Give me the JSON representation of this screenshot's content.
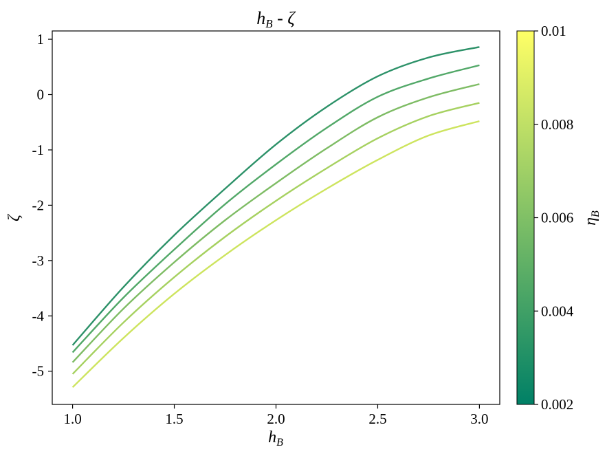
{
  "chart_data": {
    "type": "line",
    "title": "h_B - ζ",
    "xlabel": "h_B",
    "ylabel": "ζ",
    "xlim": [
      0.9,
      3.1
    ],
    "ylim": [
      -5.6,
      1.15
    ],
    "xticks": [
      1.0,
      1.5,
      2.0,
      2.5,
      3.0
    ],
    "xtick_labels": [
      "1.0",
      "1.5",
      "2.0",
      "2.5",
      "3.0"
    ],
    "yticks": [
      1,
      0,
      -1,
      -2,
      -3,
      -4,
      -5
    ],
    "ytick_labels": [
      "1",
      "0",
      "-1",
      "-2",
      "-3",
      "-4",
      "-5"
    ],
    "grid": false,
    "x": [
      1.0,
      1.25,
      1.5,
      1.75,
      2.0,
      2.25,
      2.5,
      2.75,
      3.0
    ],
    "series": [
      {
        "color": "#2c9168",
        "values": [
          -4.53,
          -3.48,
          -2.54,
          -1.7,
          -0.9,
          -0.22,
          0.33,
          0.67,
          0.86
        ]
      },
      {
        "color": "#52a868",
        "values": [
          -4.66,
          -3.67,
          -2.8,
          -1.98,
          -1.26,
          -0.6,
          -0.04,
          0.29,
          0.53
        ]
      },
      {
        "color": "#7ebc64",
        "values": [
          -4.84,
          -3.87,
          -3.03,
          -2.27,
          -1.6,
          -0.97,
          -0.41,
          -0.05,
          0.19
        ]
      },
      {
        "color": "#a6d160",
        "values": [
          -5.05,
          -4.12,
          -3.3,
          -2.57,
          -1.92,
          -1.33,
          -0.79,
          -0.39,
          -0.15
        ]
      },
      {
        "color": "#cde45e",
        "values": [
          -5.29,
          -4.4,
          -3.6,
          -2.9,
          -2.27,
          -1.7,
          -1.18,
          -0.74,
          -0.48
        ]
      }
    ],
    "colorbar": {
      "label": "η_B",
      "min": 0.002,
      "max": 0.01,
      "ticks": [
        0.002,
        0.004,
        0.006,
        0.008,
        0.01
      ],
      "tick_labels": [
        "0.002",
        "0.004",
        "0.006",
        "0.008",
        "0.01"
      ],
      "colors": [
        "#008066",
        "#80c066",
        "#ffff66"
      ]
    }
  }
}
